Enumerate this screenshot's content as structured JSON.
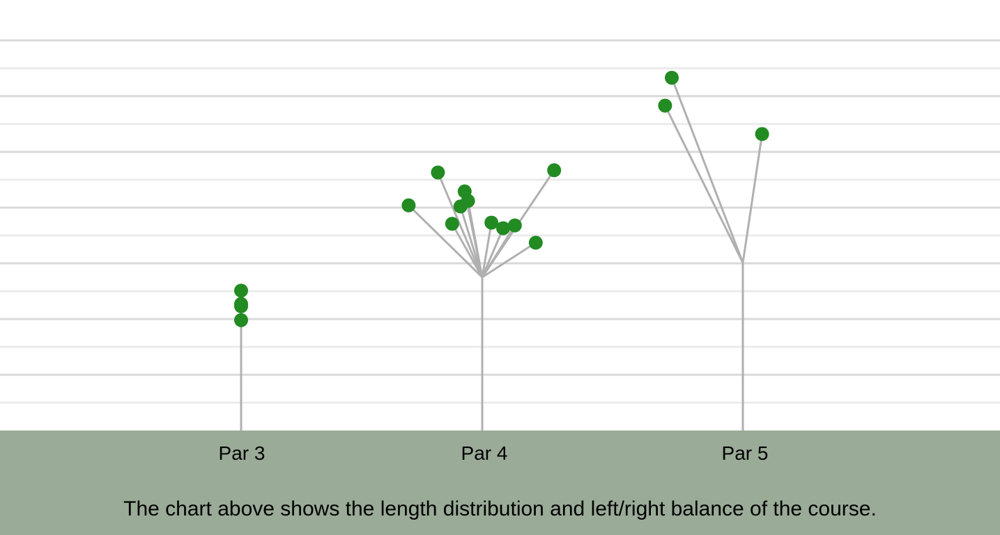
{
  "chart_data": {
    "type": "scatter",
    "categories": [
      "Par 3",
      "Par 4",
      "Par 5"
    ],
    "ylim": [
      0,
      700
    ],
    "grid": true,
    "series": [
      {
        "category": "Par 3",
        "branch_y": null,
        "holes": [
          {
            "x": 0,
            "y": 251
          },
          {
            "x": 0,
            "y": 227
          },
          {
            "x": 0,
            "y": 223
          },
          {
            "x": 0,
            "y": 198
          }
        ]
      },
      {
        "category": "Par 4",
        "branch_y": 275,
        "holes": [
          {
            "x": -8.8,
            "y": 404
          },
          {
            "x": -5.3,
            "y": 463
          },
          {
            "x": -3.6,
            "y": 371
          },
          {
            "x": -2.6,
            "y": 402
          },
          {
            "x": -2.1,
            "y": 429
          },
          {
            "x": -1.7,
            "y": 412
          },
          {
            "x": 1.1,
            "y": 373
          },
          {
            "x": 2.5,
            "y": 363
          },
          {
            "x": 3.9,
            "y": 368
          },
          {
            "x": 6.4,
            "y": 337
          },
          {
            "x": 8.6,
            "y": 467
          }
        ]
      },
      {
        "category": "Par 5",
        "branch_y": 301,
        "holes": [
          {
            "x": -9.3,
            "y": 583
          },
          {
            "x": -8.5,
            "y": 633
          },
          {
            "x": 2.3,
            "y": 532
          }
        ]
      }
    ],
    "colors": {
      "dot": "#228b22",
      "stem": "#b0b0b0",
      "grid_major": "#d9d9d9",
      "grid_minor": "#ebebeb",
      "footer": "#9aab98"
    }
  },
  "caption": "The chart above shows the length distribution and left/right balance of the course."
}
